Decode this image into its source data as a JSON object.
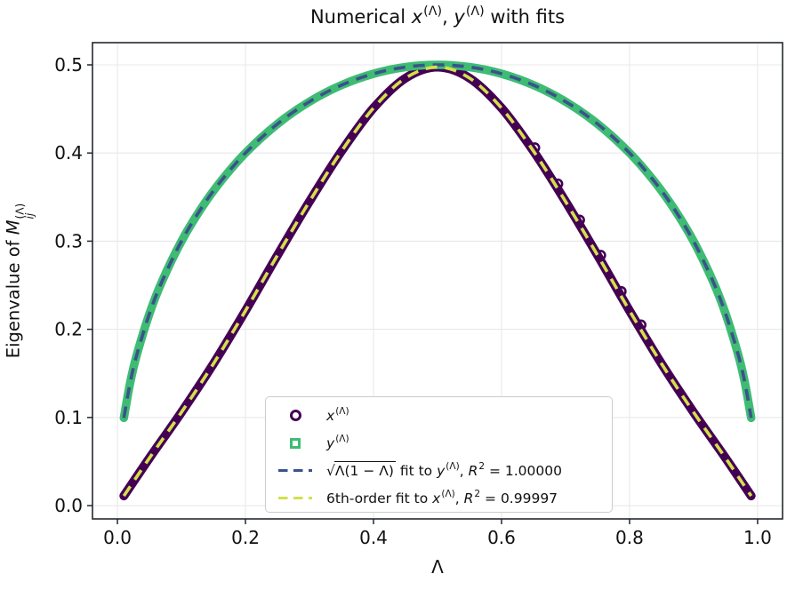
{
  "figure": {
    "background": "#ffffff"
  },
  "chart_data": {
    "type": "line+scatter",
    "title_text": "Numerical x^(Λ), y^(Λ) with fits",
    "title_segments": [
      {
        "t": "Numerical "
      },
      {
        "t": "x",
        "i": true
      },
      {
        "t": "(Λ)",
        "sup": true
      },
      {
        "t": ", "
      },
      {
        "t": "y",
        "i": true
      },
      {
        "t": "(Λ)",
        "sup": true
      },
      {
        "t": " with fits"
      }
    ],
    "xlabel": "Λ",
    "ylabel_text": "Eigenvalue of M_ij^(Λ)",
    "ylabel_segments": [
      {
        "t": "Eigenvalue of "
      },
      {
        "t": "M",
        "i": true
      },
      {
        "stack": {
          "sup": "(Λ)",
          "sub": "ij"
        }
      }
    ],
    "axes": {
      "xlim": [
        -0.039,
        1.039
      ],
      "ylim": [
        -0.0151,
        0.5252
      ],
      "grid": true,
      "xticks": {
        "values": [
          0.0,
          0.2,
          0.4,
          0.6,
          0.8,
          1.0
        ],
        "labels": [
          "0.0",
          "0.2",
          "0.4",
          "0.6",
          "0.8",
          "1.0"
        ]
      },
      "yticks": {
        "values": [
          0.0,
          0.1,
          0.2,
          0.3,
          0.4,
          0.5
        ],
        "labels": [
          "0.0",
          "0.1",
          "0.2",
          "0.3",
          "0.4",
          "0.5"
        ]
      }
    },
    "colors": {
      "x_marker": "#440154",
      "y_marker": "#3ebc74",
      "sqrt_fit": "#3b528b",
      "poly_fit": "#d3e04a",
      "grid": "#e8e8e8",
      "spine": "#24292e",
      "tick_label": "#111111"
    },
    "series": [
      {
        "id": "x-data",
        "name": "x^(Λ)",
        "marker": "circle",
        "render": "band",
        "width": 10,
        "color": "#440154",
        "points": [
          [
            0.01,
            0.011
          ],
          [
            0.05,
            0.054
          ],
          [
            0.1,
            0.106
          ],
          [
            0.15,
            0.161
          ],
          [
            0.2,
            0.221
          ],
          [
            0.25,
            0.284
          ],
          [
            0.3,
            0.345
          ],
          [
            0.35,
            0.402
          ],
          [
            0.4,
            0.451
          ],
          [
            0.45,
            0.485
          ],
          [
            0.5,
            0.4975
          ],
          [
            0.55,
            0.485
          ],
          [
            0.6,
            0.451
          ],
          [
            0.65,
            0.402
          ],
          [
            0.7,
            0.345
          ],
          [
            0.75,
            0.284
          ],
          [
            0.8,
            0.221
          ],
          [
            0.85,
            0.161
          ],
          [
            0.9,
            0.106
          ],
          [
            0.95,
            0.054
          ],
          [
            0.99,
            0.011
          ]
        ]
      },
      {
        "id": "y-data",
        "name": "y^(Λ)",
        "marker": "square",
        "render": "band",
        "width": 9.5,
        "color": "#3ebc74",
        "points": [
          [
            0.01,
            0.0995
          ],
          [
            0.02,
            0.14
          ],
          [
            0.03,
            0.1706
          ],
          [
            0.05,
            0.2179
          ],
          [
            0.07,
            0.2551
          ],
          [
            0.1,
            0.3
          ],
          [
            0.13,
            0.3363
          ],
          [
            0.16,
            0.3666
          ],
          [
            0.2,
            0.4
          ],
          [
            0.25,
            0.433
          ],
          [
            0.3,
            0.4583
          ],
          [
            0.35,
            0.477
          ],
          [
            0.4,
            0.4899
          ],
          [
            0.45,
            0.4975
          ],
          [
            0.5,
            0.5
          ],
          [
            0.55,
            0.4975
          ],
          [
            0.6,
            0.4899
          ],
          [
            0.65,
            0.477
          ],
          [
            0.7,
            0.4583
          ],
          [
            0.75,
            0.433
          ],
          [
            0.8,
            0.4
          ],
          [
            0.84,
            0.3666
          ],
          [
            0.87,
            0.3363
          ],
          [
            0.9,
            0.3
          ],
          [
            0.93,
            0.2551
          ],
          [
            0.95,
            0.2179
          ],
          [
            0.97,
            0.1706
          ],
          [
            0.98,
            0.14
          ],
          [
            0.99,
            0.0995
          ]
        ]
      },
      {
        "id": "sqrt-fit",
        "name": "sqrt(Λ(1−Λ)) fit to y^(Λ)",
        "r_squared": "1.00000",
        "render": "dash",
        "width": 3.6,
        "dash": "13 9",
        "color": "#3b528b",
        "points_ref": "y-data"
      },
      {
        "id": "poly-fit",
        "name": "6th-order fit to x^(Λ)",
        "r_squared": "0.99997",
        "render": "dash",
        "width": 3.6,
        "dash": "13 9",
        "color": "#d3e04a",
        "points_ref": "x-data"
      }
    ],
    "x_outlier_points": [
      [
        0.652,
        0.406
      ],
      [
        0.688,
        0.365
      ],
      [
        0.722,
        0.324
      ],
      [
        0.755,
        0.284
      ],
      [
        0.787,
        0.243
      ],
      [
        0.818,
        0.205
      ]
    ],
    "legend": {
      "items": [
        {
          "marker": {
            "type": "circle",
            "color": "#440154"
          },
          "label": [
            {
              "t": "x",
              "i": true
            },
            {
              "t": "(Λ)",
              "sup": true
            }
          ]
        },
        {
          "marker": {
            "type": "square",
            "color": "#3ebc74"
          },
          "label": [
            {
              "t": "y",
              "i": true
            },
            {
              "t": "(Λ)",
              "sup": true
            }
          ]
        },
        {
          "marker": {
            "type": "dashes",
            "color": "#3b528b"
          },
          "label": [
            {
              "t": "√",
              "sq": true
            },
            {
              "t": "Λ(1 − Λ)",
              "rad": true
            },
            {
              "t": " fit to "
            },
            {
              "t": "y",
              "i": true
            },
            {
              "t": "(Λ)",
              "sup": true
            },
            {
              "t": ", "
            },
            {
              "t": "R",
              "i": true
            },
            {
              "t": "2",
              "sup": true
            },
            {
              "t": " = 1.00000"
            }
          ]
        },
        {
          "marker": {
            "type": "dashes",
            "color": "#d3e04a"
          },
          "label": [
            {
              "t": "6th-order fit to "
            },
            {
              "t": "x",
              "i": true
            },
            {
              "t": "(Λ)",
              "sup": true
            },
            {
              "t": ", "
            },
            {
              "t": "R",
              "i": true
            },
            {
              "t": "2",
              "sup": true
            },
            {
              "t": " = 0.99997"
            }
          ]
        }
      ]
    }
  }
}
